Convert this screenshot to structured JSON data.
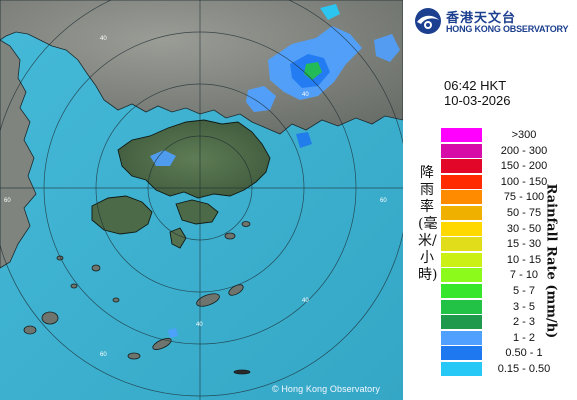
{
  "map": {
    "copyright": "© Hong Kong Observatory",
    "range_labels": [
      "40",
      "40",
      "40",
      "60",
      "60",
      "60",
      "40"
    ]
  },
  "header": {
    "logo_zh": "香港天文台",
    "logo_en": "HONG KONG OBSERVATORY"
  },
  "timestamp": {
    "time": "06:42 HKT",
    "date": "10-03-2026"
  },
  "legend": {
    "title_zh": "降雨率(毫米/小時)",
    "title_en": "Rainfall Rate (mm/h)",
    "items": [
      {
        "label": ">300",
        "color": "#ff00ff"
      },
      {
        "label": "200 - 300",
        "color": "#d60ba8"
      },
      {
        "label": "150 - 200",
        "color": "#e20628"
      },
      {
        "label": "100 - 150",
        "color": "#ff2a00"
      },
      {
        "label": "75 - 100",
        "color": "#ff8b00"
      },
      {
        "label": "50 - 75",
        "color": "#f0b000"
      },
      {
        "label": "30 - 50",
        "color": "#ffd800"
      },
      {
        "label": "15 - 30",
        "color": "#e2dd1a"
      },
      {
        "label": "10 - 15",
        "color": "#caf016"
      },
      {
        "label": "7 - 10",
        "color": "#8cfa1a"
      },
      {
        "label": "5 - 7",
        "color": "#35e62a"
      },
      {
        "label": "3 - 5",
        "color": "#22c246"
      },
      {
        "label": "2 - 3",
        "color": "#1f9a4c"
      },
      {
        "label": "1 - 2",
        "color": "#4fa0ff"
      },
      {
        "label": "0.50 - 1",
        "color": "#1e78f0"
      },
      {
        "label": "0.15 - 0.50",
        "color": "#27c8f5"
      }
    ]
  }
}
